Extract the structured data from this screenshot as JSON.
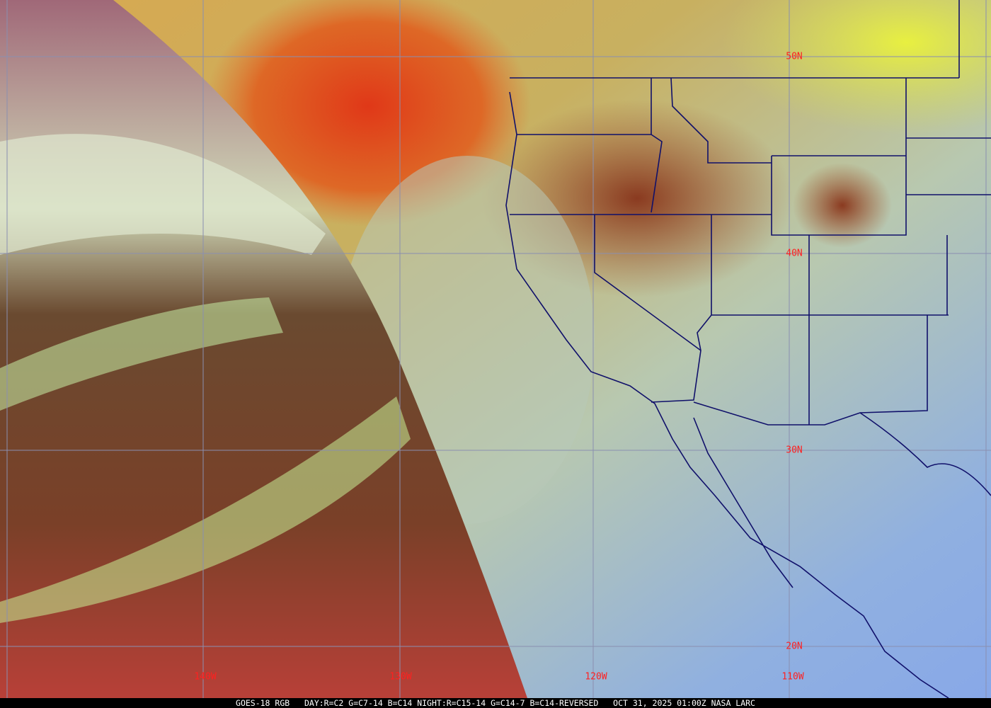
{
  "caption": {
    "satellite": "GOES-18 RGB",
    "recipe": "DAY:R=C2 G=C7-14 B=C14 NIGHT:R=C15-14 G=C14-7 B=C14-REVERSED",
    "datetime": "OCT 31, 2025 01:00Z",
    "source": "NASA LARC"
  },
  "grid": {
    "latitude_labels": [
      "50N",
      "40N",
      "30N",
      "20N"
    ],
    "longitude_labels": [
      "140W",
      "130W",
      "120W",
      "110W"
    ],
    "label_color": "#ff2020",
    "grid_color": "#8a8fb0",
    "border_color": "#10106a"
  }
}
